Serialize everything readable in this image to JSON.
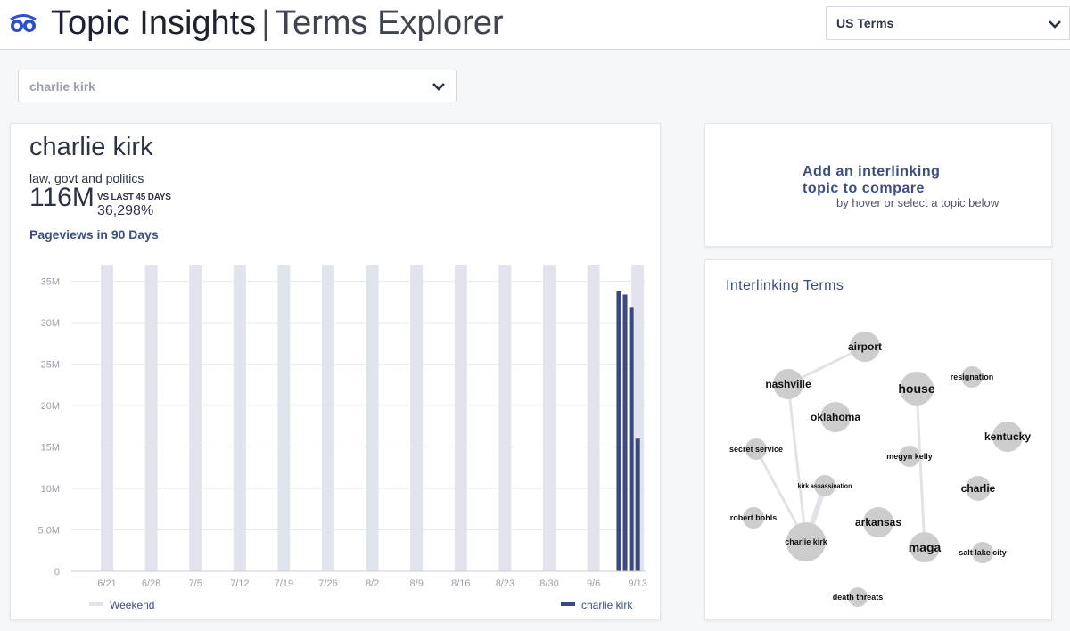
{
  "header": {
    "app_title": "Topic Insights",
    "separator": "|",
    "subtitle": "Terms Explorer",
    "logo_icon": "owl-eyes-logo-icon",
    "region_select": "US Terms"
  },
  "topic_select": {
    "value": "charlie kirk"
  },
  "topic": {
    "name": "charlie kirk",
    "category": "law, govt and politics",
    "pageviews": "116M",
    "vs_label": "VS LAST 45 DAYS",
    "vs_change": "36,298%",
    "pageviews_label": "Pageviews in 90 Days"
  },
  "compare": {
    "title_line1": "Add an interlinking",
    "title_line2": "topic to compare",
    "subtitle": "by hover or select a topic below"
  },
  "colors": {
    "accent": "#3d4f80",
    "weekend": "#e1e4ec",
    "series": "#3b4a7a"
  },
  "chart_data": {
    "type": "bar",
    "y_ticks": [
      "0",
      "5.0M",
      "10M",
      "15M",
      "20M",
      "25M",
      "30M",
      "35M"
    ],
    "ylim": [
      0,
      37000000
    ],
    "x_ticks": [
      "6/21",
      "6/28",
      "7/5",
      "7/12",
      "7/19",
      "7/26",
      "8/2",
      "8/9",
      "8/16",
      "8/23",
      "8/30",
      "9/6",
      "9/13"
    ],
    "weekend_markers": [
      "6/21",
      "6/28",
      "7/5",
      "7/12",
      "7/19",
      "7/26",
      "8/2",
      "8/9",
      "8/16",
      "8/23",
      "8/30",
      "9/6",
      "9/13"
    ],
    "series": [
      {
        "name": "charlie kirk",
        "x": [
          "9/10",
          "9/11",
          "9/12",
          "9/13"
        ],
        "values": [
          33800000,
          33400000,
          31800000,
          16000000
        ]
      }
    ],
    "legend": [
      {
        "label": "Weekend",
        "color": "#e1e4ec"
      },
      {
        "label": "charlie kirk",
        "color": "#3b4a7a"
      }
    ],
    "grid": true
  },
  "network": {
    "title": "Interlinking Terms",
    "nodes": [
      {
        "id": "airport",
        "label": "airport",
        "size": "large"
      },
      {
        "id": "nashville",
        "label": "nashville",
        "size": "large"
      },
      {
        "id": "house",
        "label": "house",
        "size": "xlarge"
      },
      {
        "id": "resignation",
        "label": "resignation",
        "size": "small"
      },
      {
        "id": "oklahoma",
        "label": "oklahoma",
        "size": "large"
      },
      {
        "id": "kentucky",
        "label": "kentucky",
        "size": "large"
      },
      {
        "id": "secret-service",
        "label": "secret service",
        "size": "small"
      },
      {
        "id": "megyn-kelly",
        "label": "megyn kelly",
        "size": "small"
      },
      {
        "id": "kirk-assassination",
        "label": "kirk assassination",
        "size": "tiny"
      },
      {
        "id": "charlie",
        "label": "charlie",
        "size": "medium"
      },
      {
        "id": "robert-bohls",
        "label": "robert bohls",
        "size": "small"
      },
      {
        "id": "arkansas",
        "label": "arkansas",
        "size": "large"
      },
      {
        "id": "charlie-kirk",
        "label": "charlie kirk",
        "size": "small"
      },
      {
        "id": "maga",
        "label": "maga",
        "size": "xlarge"
      },
      {
        "id": "salt-lake-city",
        "label": "salt lake city",
        "size": "small"
      },
      {
        "id": "death-threats",
        "label": "death threats",
        "size": "small"
      }
    ],
    "links": [
      [
        "nashville",
        "airport"
      ],
      [
        "nashville",
        "charlie-kirk"
      ],
      [
        "secret-service",
        "charlie-kirk"
      ],
      [
        "kirk-assassination",
        "charlie-kirk"
      ],
      [
        "house",
        "maga"
      ]
    ]
  }
}
